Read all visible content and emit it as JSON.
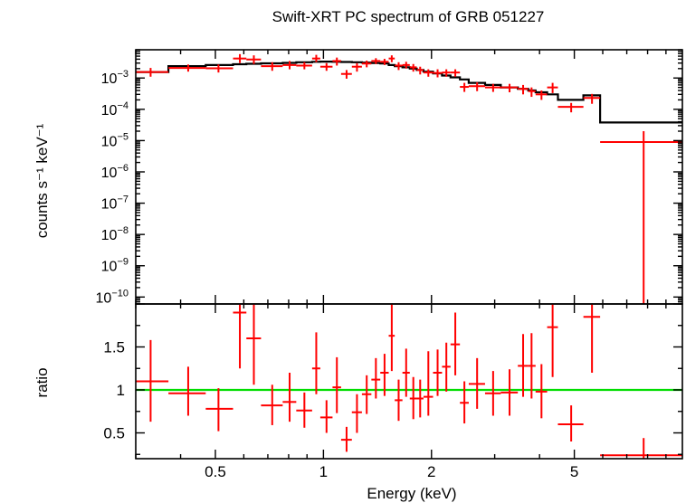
{
  "chart_data": [
    {
      "type": "scatter",
      "title": "Swift-XRT PC spectrum of GRB 051227",
      "xlabel": "Energy (keV)",
      "ylabel": "counts s⁻¹ keV⁻¹",
      "xscale": "log",
      "yscale": "log",
      "xlim": [
        0.3,
        10
      ],
      "ylim": [
        6e-11,
        0.008
      ],
      "xticks": [
        {
          "v": 0.5,
          "label": "0.5"
        },
        {
          "v": 1,
          "label": "1"
        },
        {
          "v": 2,
          "label": "2"
        },
        {
          "v": 5,
          "label": "5"
        }
      ],
      "yticks": [
        {
          "v": 0.001,
          "m": "10",
          "e": "−3"
        },
        {
          "v": 0.0001,
          "m": "10",
          "e": "−4"
        },
        {
          "v": 1e-05,
          "m": "10",
          "e": "−5"
        },
        {
          "v": 1e-06,
          "m": "10",
          "e": "−6"
        },
        {
          "v": 1e-07,
          "m": "10",
          "e": "−7"
        },
        {
          "v": 1e-08,
          "m": "10",
          "e": "−8"
        },
        {
          "v": 1e-09,
          "m": "10",
          "e": "−9"
        },
        {
          "v": 1e-10,
          "m": "10",
          "e": "−10"
        }
      ],
      "colors": {
        "data": "#ff0000",
        "model": "#000000"
      },
      "series": [
        {
          "kind": "data",
          "points": [
            {
              "x": 0.33,
              "xlo": 0.3,
              "xhi": 0.37,
              "y": 0.00155,
              "ylo": 0.0011,
              "yhi": 0.0021
            },
            {
              "x": 0.42,
              "xlo": 0.37,
              "xhi": 0.47,
              "y": 0.0021,
              "ylo": 0.0016,
              "yhi": 0.0027
            },
            {
              "x": 0.51,
              "xlo": 0.47,
              "xhi": 0.56,
              "y": 0.00205,
              "ylo": 0.0015,
              "yhi": 0.0027
            },
            {
              "x": 0.585,
              "xlo": 0.56,
              "xhi": 0.61,
              "y": 0.0042,
              "ylo": 0.003,
              "yhi": 0.0058
            },
            {
              "x": 0.64,
              "xlo": 0.61,
              "xhi": 0.67,
              "y": 0.0039,
              "ylo": 0.0028,
              "yhi": 0.0053
            },
            {
              "x": 0.72,
              "xlo": 0.67,
              "xhi": 0.77,
              "y": 0.0024,
              "ylo": 0.0017,
              "yhi": 0.0032
            },
            {
              "x": 0.805,
              "xlo": 0.77,
              "xhi": 0.84,
              "y": 0.0026,
              "ylo": 0.0019,
              "yhi": 0.0035
            },
            {
              "x": 0.885,
              "xlo": 0.84,
              "xhi": 0.93,
              "y": 0.0025,
              "ylo": 0.0019,
              "yhi": 0.0032
            },
            {
              "x": 0.955,
              "xlo": 0.93,
              "xhi": 0.98,
              "y": 0.0042,
              "ylo": 0.0032,
              "yhi": 0.0055
            },
            {
              "x": 1.02,
              "xlo": 0.98,
              "xhi": 1.06,
              "y": 0.0023,
              "ylo": 0.0017,
              "yhi": 0.003
            },
            {
              "x": 1.09,
              "xlo": 1.06,
              "xhi": 1.12,
              "y": 0.0035,
              "ylo": 0.0025,
              "yhi": 0.0045
            },
            {
              "x": 1.16,
              "xlo": 1.12,
              "xhi": 1.2,
              "y": 0.00135,
              "ylo": 0.00095,
              "yhi": 0.0018
            },
            {
              "x": 1.24,
              "xlo": 1.2,
              "xhi": 1.28,
              "y": 0.0023,
              "ylo": 0.0016,
              "yhi": 0.003
            },
            {
              "x": 1.32,
              "xlo": 1.28,
              "xhi": 1.36,
              "y": 0.0029,
              "ylo": 0.0022,
              "yhi": 0.0036
            },
            {
              "x": 1.4,
              "xlo": 1.36,
              "xhi": 1.44,
              "y": 0.0035,
              "ylo": 0.0028,
              "yhi": 0.0043
            },
            {
              "x": 1.48,
              "xlo": 1.44,
              "xhi": 1.52,
              "y": 0.0033,
              "ylo": 0.0026,
              "yhi": 0.0041
            },
            {
              "x": 1.55,
              "xlo": 1.52,
              "xhi": 1.58,
              "y": 0.0042,
              "ylo": 0.0032,
              "yhi": 0.0053
            },
            {
              "x": 1.62,
              "xlo": 1.58,
              "xhi": 1.66,
              "y": 0.0025,
              "ylo": 0.0018,
              "yhi": 0.0032
            },
            {
              "x": 1.7,
              "xlo": 1.66,
              "xhi": 1.74,
              "y": 0.0026,
              "ylo": 0.002,
              "yhi": 0.0033
            },
            {
              "x": 1.78,
              "xlo": 1.74,
              "xhi": 1.82,
              "y": 0.0022,
              "ylo": 0.0016,
              "yhi": 0.0028
            },
            {
              "x": 1.86,
              "xlo": 1.82,
              "xhi": 1.9,
              "y": 0.0018,
              "ylo": 0.0013,
              "yhi": 0.0023
            },
            {
              "x": 1.96,
              "xlo": 1.9,
              "xhi": 2.02,
              "y": 0.0015,
              "ylo": 0.0011,
              "yhi": 0.0019
            },
            {
              "x": 2.08,
              "xlo": 2.02,
              "xhi": 2.14,
              "y": 0.00145,
              "ylo": 0.00105,
              "yhi": 0.0019
            },
            {
              "x": 2.2,
              "xlo": 2.14,
              "xhi": 2.26,
              "y": 0.0015,
              "ylo": 0.0011,
              "yhi": 0.0019
            },
            {
              "x": 2.33,
              "xlo": 2.26,
              "xhi": 2.4,
              "y": 0.0015,
              "ylo": 0.0011,
              "yhi": 0.0019
            },
            {
              "x": 2.47,
              "xlo": 2.4,
              "xhi": 2.54,
              "y": 0.00052,
              "ylo": 0.00036,
              "yhi": 0.0007
            },
            {
              "x": 2.68,
              "xlo": 2.54,
              "xhi": 2.82,
              "y": 0.00055,
              "ylo": 0.00038,
              "yhi": 0.00073
            },
            {
              "x": 2.97,
              "xlo": 2.82,
              "xhi": 3.12,
              "y": 0.0005,
              "ylo": 0.00036,
              "yhi": 0.00065
            },
            {
              "x": 3.3,
              "xlo": 3.12,
              "xhi": 3.48,
              "y": 0.0005,
              "ylo": 0.00035,
              "yhi": 0.00065
            },
            {
              "x": 3.6,
              "xlo": 3.48,
              "xhi": 3.72,
              "y": 0.00045,
              "ylo": 0.0003,
              "yhi": 0.0006
            },
            {
              "x": 3.8,
              "xlo": 3.72,
              "xhi": 3.9,
              "y": 0.00038,
              "ylo": 0.00025,
              "yhi": 0.0005
            },
            {
              "x": 4.05,
              "xlo": 3.9,
              "xhi": 4.2,
              "y": 0.0003,
              "ylo": 0.0002,
              "yhi": 0.0004
            },
            {
              "x": 4.35,
              "xlo": 4.2,
              "xhi": 4.5,
              "y": 0.0005,
              "ylo": 0.00033,
              "yhi": 0.0007
            },
            {
              "x": 4.9,
              "xlo": 4.5,
              "xhi": 5.3,
              "y": 0.00012,
              "ylo": 8e-05,
              "yhi": 0.00016
            },
            {
              "x": 5.6,
              "xlo": 5.3,
              "xhi": 5.9,
              "y": 0.00023,
              "ylo": 0.00015,
              "yhi": 0.00031
            },
            {
              "x": 7.8,
              "xlo": 5.9,
              "xhi": 10.0,
              "y": 9e-06,
              "ylo": 6e-11,
              "yhi": 2e-05
            }
          ]
        },
        {
          "kind": "model",
          "edges": [
            0.3,
            0.37,
            0.47,
            0.56,
            0.61,
            0.67,
            0.77,
            0.84,
            0.93,
            0.98,
            1.06,
            1.12,
            1.2,
            1.28,
            1.36,
            1.44,
            1.52,
            1.58,
            1.66,
            1.74,
            1.82,
            1.9,
            2.02,
            2.14,
            2.26,
            2.4,
            2.54,
            2.82,
            3.12,
            3.48,
            3.72,
            3.9,
            4.2,
            4.5,
            5.3,
            5.9,
            10.0
          ],
          "values": [
            0.00155,
            0.0024,
            0.0026,
            0.00275,
            0.00285,
            0.00295,
            0.00305,
            0.0032,
            0.0033,
            0.00335,
            0.0033,
            0.00325,
            0.0032,
            0.0031,
            0.003,
            0.0029,
            0.0026,
            0.0024,
            0.0022,
            0.002,
            0.0018,
            0.0016,
            0.0014,
            0.0012,
            0.00105,
            0.0009,
            0.0007,
            0.0006,
            0.0005,
            0.00045,
            0.0004,
            0.00035,
            0.0003,
            0.0002,
            0.00028,
            3.8e-05
          ]
        }
      ]
    },
    {
      "type": "scatter",
      "xlabel": "Energy (keV)",
      "ylabel": "ratio",
      "xscale": "log",
      "yscale": "linear",
      "xlim": [
        0.3,
        10
      ],
      "ylim": [
        0.2,
        2.0
      ],
      "yticks": [
        {
          "v": 0.5,
          "label": "0.5"
        },
        {
          "v": 1,
          "label": "1"
        },
        {
          "v": 1.5,
          "label": "1.5"
        }
      ],
      "reference_line": {
        "y": 1.0,
        "color": "#00dd00"
      },
      "colors": {
        "data": "#ff0000"
      },
      "series": [
        {
          "kind": "data",
          "points": [
            {
              "x": 0.33,
              "xlo": 0.3,
              "xhi": 0.37,
              "y": 1.1,
              "ylo": 0.63,
              "yhi": 1.58
            },
            {
              "x": 0.42,
              "xlo": 0.37,
              "xhi": 0.47,
              "y": 0.96,
              "ylo": 0.7,
              "yhi": 1.27
            },
            {
              "x": 0.51,
              "xlo": 0.47,
              "xhi": 0.56,
              "y": 0.78,
              "ylo": 0.52,
              "yhi": 1.02
            },
            {
              "x": 0.585,
              "xlo": 0.56,
              "xhi": 0.61,
              "y": 1.9,
              "ylo": 1.25,
              "yhi": 2.0
            },
            {
              "x": 0.64,
              "xlo": 0.61,
              "xhi": 0.67,
              "y": 1.6,
              "ylo": 1.06,
              "yhi": 2.0
            },
            {
              "x": 0.72,
              "xlo": 0.67,
              "xhi": 0.77,
              "y": 0.82,
              "ylo": 0.59,
              "yhi": 1.06
            },
            {
              "x": 0.805,
              "xlo": 0.77,
              "xhi": 0.84,
              "y": 0.86,
              "ylo": 0.63,
              "yhi": 1.2
            },
            {
              "x": 0.885,
              "xlo": 0.84,
              "xhi": 0.93,
              "y": 0.76,
              "ylo": 0.56,
              "yhi": 0.97
            },
            {
              "x": 0.955,
              "xlo": 0.93,
              "xhi": 0.98,
              "y": 1.25,
              "ylo": 0.95,
              "yhi": 1.67
            },
            {
              "x": 1.02,
              "xlo": 0.98,
              "xhi": 1.06,
              "y": 0.68,
              "ylo": 0.5,
              "yhi": 0.88
            },
            {
              "x": 1.09,
              "xlo": 1.06,
              "xhi": 1.12,
              "y": 1.03,
              "ylo": 0.73,
              "yhi": 1.38
            },
            {
              "x": 1.16,
              "xlo": 1.12,
              "xhi": 1.2,
              "y": 0.42,
              "ylo": 0.28,
              "yhi": 0.57
            },
            {
              "x": 1.24,
              "xlo": 1.2,
              "xhi": 1.28,
              "y": 0.74,
              "ylo": 0.5,
              "yhi": 0.95
            },
            {
              "x": 1.32,
              "xlo": 1.28,
              "xhi": 1.36,
              "y": 0.95,
              "ylo": 0.72,
              "yhi": 1.17
            },
            {
              "x": 1.4,
              "xlo": 1.36,
              "xhi": 1.44,
              "y": 1.12,
              "ylo": 0.9,
              "yhi": 1.37
            },
            {
              "x": 1.48,
              "xlo": 1.44,
              "xhi": 1.52,
              "y": 1.2,
              "ylo": 0.93,
              "yhi": 1.42
            },
            {
              "x": 1.55,
              "xlo": 1.52,
              "xhi": 1.58,
              "y": 1.63,
              "ylo": 1.22,
              "yhi": 2.0
            },
            {
              "x": 1.62,
              "xlo": 1.58,
              "xhi": 1.66,
              "y": 0.88,
              "ylo": 0.64,
              "yhi": 1.12
            },
            {
              "x": 1.7,
              "xlo": 1.66,
              "xhi": 1.74,
              "y": 1.2,
              "ylo": 0.92,
              "yhi": 1.48
            },
            {
              "x": 1.78,
              "xlo": 1.74,
              "xhi": 1.82,
              "y": 0.9,
              "ylo": 0.66,
              "yhi": 1.15
            },
            {
              "x": 1.86,
              "xlo": 1.82,
              "xhi": 1.9,
              "y": 0.9,
              "ylo": 0.68,
              "yhi": 1.12
            },
            {
              "x": 1.96,
              "xlo": 1.9,
              "xhi": 2.02,
              "y": 0.92,
              "ylo": 0.7,
              "yhi": 1.45
            },
            {
              "x": 2.08,
              "xlo": 2.02,
              "xhi": 2.14,
              "y": 1.2,
              "ylo": 0.93,
              "yhi": 1.47
            },
            {
              "x": 2.2,
              "xlo": 2.14,
              "xhi": 2.26,
              "y": 1.27,
              "ylo": 0.98,
              "yhi": 1.55
            },
            {
              "x": 2.33,
              "xlo": 2.26,
              "xhi": 2.4,
              "y": 1.53,
              "ylo": 1.17,
              "yhi": 1.9
            },
            {
              "x": 2.47,
              "xlo": 2.4,
              "xhi": 2.54,
              "y": 0.85,
              "ylo": 0.61,
              "yhi": 1.1
            },
            {
              "x": 2.68,
              "xlo": 2.54,
              "xhi": 2.82,
              "y": 1.07,
              "ylo": 0.78,
              "yhi": 1.37
            },
            {
              "x": 2.97,
              "xlo": 2.82,
              "xhi": 3.12,
              "y": 0.96,
              "ylo": 0.7,
              "yhi": 1.22
            },
            {
              "x": 3.3,
              "xlo": 3.12,
              "xhi": 3.48,
              "y": 0.97,
              "ylo": 0.7,
              "yhi": 1.24
            },
            {
              "x": 3.6,
              "xlo": 3.48,
              "xhi": 3.72,
              "y": 1.28,
              "ylo": 0.92,
              "yhi": 1.65
            },
            {
              "x": 3.8,
              "xlo": 3.72,
              "xhi": 3.9,
              "y": 1.28,
              "ylo": 0.9,
              "yhi": 1.66
            },
            {
              "x": 4.05,
              "xlo": 3.9,
              "xhi": 4.2,
              "y": 0.98,
              "ylo": 0.67,
              "yhi": 1.3
            },
            {
              "x": 4.35,
              "xlo": 4.2,
              "xhi": 4.5,
              "y": 1.73,
              "ylo": 1.15,
              "yhi": 2.0
            },
            {
              "x": 4.9,
              "xlo": 4.5,
              "xhi": 5.3,
              "y": 0.6,
              "ylo": 0.4,
              "yhi": 0.82
            },
            {
              "x": 5.6,
              "xlo": 5.3,
              "xhi": 5.9,
              "y": 1.85,
              "ylo": 1.2,
              "yhi": 2.0
            },
            {
              "x": 7.8,
              "xlo": 5.9,
              "xhi": 10.0,
              "y": 0.24,
              "ylo": 0.2,
              "yhi": 0.44
            }
          ]
        }
      ]
    }
  ]
}
